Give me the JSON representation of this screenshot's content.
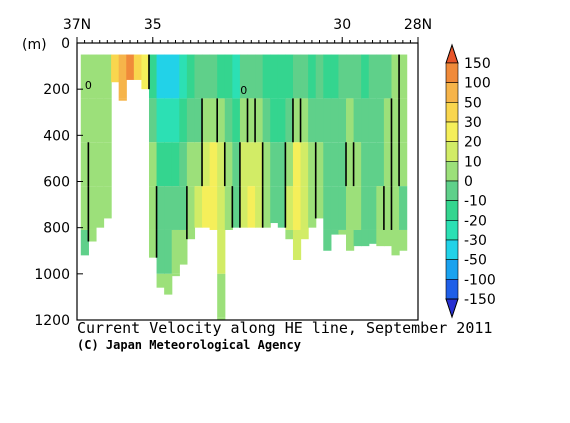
{
  "chart_data": {
    "type": "heatmap",
    "title": "Current Velocity along HE line, September 2011",
    "credit": "(C) Japan Meteorological Agency",
    "xlabel": "",
    "ylabel": "(m)",
    "x_ticks": [
      {
        "lat": 37,
        "label": "37N"
      },
      {
        "lat": 35,
        "label": "35"
      },
      {
        "lat": 30,
        "label": "30"
      },
      {
        "lat": 28,
        "label": "28N"
      }
    ],
    "xlim": [
      37,
      28
    ],
    "y_ticks": [
      0,
      200,
      400,
      600,
      800,
      1000,
      1200
    ],
    "ylim": [
      0,
      1200
    ],
    "colorbar": {
      "labels": [
        "150",
        "100",
        "50",
        "30",
        "20",
        "10",
        "0",
        "-10",
        "-20",
        "-30",
        "-50",
        "-100",
        "-150"
      ],
      "colors": [
        "#e8552a",
        "#f08a3a",
        "#f6b44a",
        "#f9d64e",
        "#f5ef5a",
        "#d2ec66",
        "#9ce07a",
        "#5fd08a",
        "#34d58f",
        "#2ce0b4",
        "#22d2e8",
        "#1aa2ef",
        "#1f5fe8",
        "#2830d2"
      ]
    },
    "contour_labels": [
      "0",
      "0"
    ],
    "columns": [
      {
        "lat": 36.8,
        "depth": 920,
        "v": [
          2,
          1,
          0,
          0,
          -1,
          -1
        ]
      },
      {
        "lat": 36.6,
        "depth": 860,
        "v": [
          8,
          6,
          4,
          2,
          1,
          0
        ]
      },
      {
        "lat": 36.4,
        "depth": 800,
        "v": [
          6,
          5,
          3,
          2,
          1,
          0
        ]
      },
      {
        "lat": 36.2,
        "depth": 760,
        "v": [
          4,
          3,
          2,
          1,
          0,
          0
        ]
      },
      {
        "lat": 36.0,
        "depth": 170,
        "v": [
          35,
          20
        ]
      },
      {
        "lat": 35.8,
        "depth": 250,
        "v": [
          80,
          60,
          40
        ]
      },
      {
        "lat": 35.6,
        "depth": 160,
        "v": [
          100,
          80
        ]
      },
      {
        "lat": 35.4,
        "depth": 160,
        "v": [
          30,
          25
        ]
      },
      {
        "lat": 35.2,
        "depth": 200,
        "v": [
          20,
          15,
          10
        ]
      },
      {
        "lat": 35.0,
        "depth": 930,
        "v": [
          -20,
          -10,
          0,
          5,
          3,
          0
        ]
      },
      {
        "lat": 34.8,
        "depth": 1060,
        "v": [
          -35,
          -25,
          -15,
          -10,
          -5,
          0
        ]
      },
      {
        "lat": 34.6,
        "depth": 1090,
        "v": [
          -40,
          -30,
          -20,
          -10,
          -5,
          0
        ]
      },
      {
        "lat": 34.4,
        "depth": 1010,
        "v": [
          -35,
          -25,
          -15,
          -10,
          0,
          0
        ]
      },
      {
        "lat": 34.2,
        "depth": 960,
        "v": [
          -30,
          -20,
          -10,
          -5,
          0,
          0
        ]
      },
      {
        "lat": 34.0,
        "depth": 850,
        "v": [
          -15,
          -10,
          0,
          5,
          2,
          0
        ]
      },
      {
        "lat": 33.8,
        "depth": 800,
        "v": [
          -10,
          -5,
          0,
          10,
          15,
          5
        ]
      },
      {
        "lat": 33.6,
        "depth": 800,
        "v": [
          -5,
          5,
          15,
          20,
          15,
          5
        ]
      },
      {
        "lat": 33.4,
        "depth": 810,
        "v": [
          -8,
          5,
          20,
          25,
          20,
          5
        ]
      },
      {
        "lat": 33.2,
        "depth": 1200,
        "v": [
          -15,
          0,
          10,
          15,
          10,
          0
        ]
      },
      {
        "lat": 33.0,
        "depth": 810,
        "v": [
          -20,
          -10,
          0,
          5,
          0,
          0
        ]
      },
      {
        "lat": 32.8,
        "depth": 800,
        "v": [
          -25,
          -20,
          -10,
          -5,
          0,
          0
        ]
      },
      {
        "lat": 32.6,
        "depth": 800,
        "v": [
          -10,
          0,
          10,
          15,
          10,
          5
        ]
      },
      {
        "lat": 32.4,
        "depth": 800,
        "v": [
          -5,
          5,
          15,
          20,
          10,
          5
        ]
      },
      {
        "lat": 32.2,
        "depth": 800,
        "v": [
          -10,
          0,
          10,
          10,
          5,
          0
        ]
      },
      {
        "lat": 32.0,
        "depth": 800,
        "v": [
          -20,
          -10,
          0,
          0,
          -5,
          -5
        ]
      },
      {
        "lat": 31.8,
        "depth": 780,
        "v": [
          -20,
          -15,
          -10,
          -10,
          -5,
          0
        ]
      },
      {
        "lat": 31.6,
        "depth": 800,
        "v": [
          -20,
          -15,
          -10,
          -10,
          -10,
          -5
        ]
      },
      {
        "lat": 31.4,
        "depth": 850,
        "v": [
          -15,
          -10,
          5,
          10,
          5,
          0
        ]
      },
      {
        "lat": 31.2,
        "depth": 940,
        "v": [
          -5,
          5,
          20,
          25,
          10,
          5
        ]
      },
      {
        "lat": 31.0,
        "depth": 850,
        "v": [
          -10,
          0,
          15,
          15,
          10,
          0
        ]
      },
      {
        "lat": 30.8,
        "depth": 800,
        "v": [
          -15,
          -5,
          5,
          5,
          5,
          0
        ]
      },
      {
        "lat": 30.6,
        "depth": 760,
        "v": [
          -10,
          -5,
          0,
          0,
          0,
          0
        ]
      },
      {
        "lat": 30.4,
        "depth": 900,
        "v": [
          -15,
          -10,
          -5,
          -10,
          -5,
          0
        ]
      },
      {
        "lat": 30.2,
        "depth": 830,
        "v": [
          -15,
          -10,
          -10,
          -5,
          -5,
          -5
        ]
      },
      {
        "lat": 30.0,
        "depth": 830,
        "v": [
          -10,
          -10,
          -5,
          -5,
          0,
          0
        ]
      },
      {
        "lat": 29.8,
        "depth": 900,
        "v": [
          -5,
          0,
          5,
          0,
          0,
          -5
        ]
      },
      {
        "lat": 29.6,
        "depth": 880,
        "v": [
          -10,
          -5,
          0,
          0,
          -5,
          -5
        ]
      },
      {
        "lat": 29.4,
        "depth": 880,
        "v": [
          -15,
          -10,
          -10,
          -5,
          -5,
          -5
        ]
      },
      {
        "lat": 29.2,
        "depth": 870,
        "v": [
          -10,
          -10,
          -10,
          -5,
          -5,
          -5
        ]
      },
      {
        "lat": 29.0,
        "depth": 880,
        "v": [
          -10,
          -5,
          -5,
          0,
          0,
          0
        ]
      },
      {
        "lat": 28.8,
        "depth": 880,
        "v": [
          -5,
          0,
          0,
          5,
          0,
          0
        ]
      },
      {
        "lat": 28.6,
        "depth": 920,
        "v": [
          0,
          5,
          5,
          0,
          0,
          0
        ]
      },
      {
        "lat": 28.4,
        "depth": 900,
        "v": [
          5,
          0,
          0,
          -5,
          0,
          0
        ]
      }
    ]
  }
}
